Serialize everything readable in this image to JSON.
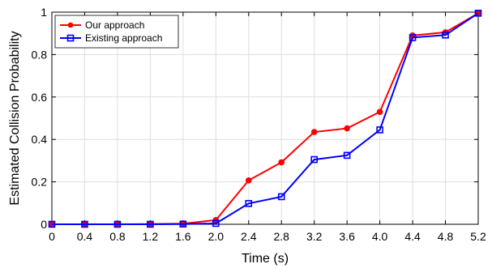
{
  "chart_data": {
    "type": "line",
    "title": "",
    "xlabel": "Time (s)",
    "ylabel": "Estimated Collision Probability",
    "x": [
      0,
      0.4,
      0.8,
      1.2,
      1.6,
      2.0,
      2.4,
      2.8,
      3.2,
      3.6,
      4.0,
      4.4,
      4.8,
      5.2
    ],
    "xtick_labels": [
      "0",
      "0.4",
      "0.8",
      "1.2",
      "1.6",
      "2.0",
      "2.4",
      "2.8",
      "3.2",
      "3.6",
      "4.0",
      "4.4",
      "4.8",
      "5.2"
    ],
    "ytick_values": [
      0,
      0.2,
      0.4,
      0.6,
      0.8,
      1
    ],
    "ytick_labels": [
      "0",
      "0.2",
      "0.4",
      "0.6",
      "0.8",
      "1"
    ],
    "xlim": [
      0,
      5.2
    ],
    "ylim": [
      0,
      1
    ],
    "grid": true,
    "legend_position": "top-left",
    "series": [
      {
        "name": "Our approach",
        "color": "#ff0000",
        "marker": "circle",
        "values": [
          0,
          0,
          0,
          0.001,
          0.003,
          0.02,
          0.207,
          0.292,
          0.435,
          0.452,
          0.53,
          0.89,
          0.905,
          0.995
        ]
      },
      {
        "name": "Existing approach",
        "color": "#0000ff",
        "marker": "square",
        "values": [
          0,
          0,
          0,
          0,
          0.001,
          0.004,
          0.098,
          0.13,
          0.305,
          0.325,
          0.445,
          0.88,
          0.892,
          0.995
        ]
      }
    ]
  }
}
